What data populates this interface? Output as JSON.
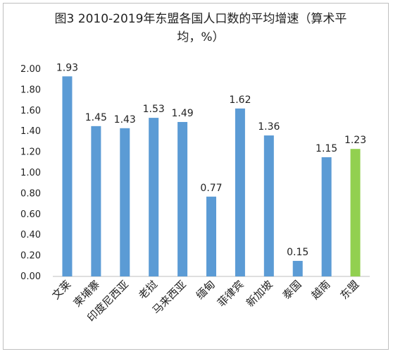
{
  "chart_data": {
    "type": "bar",
    "title": "图3 2010-2019年东盟各国人口数的平均增速（算术平均，%）",
    "categories": [
      "文莱",
      "柬埔寨",
      "印度尼西亚",
      "老挝",
      "马来西亚",
      "缅甸",
      "菲律宾",
      "新加坡",
      "泰国",
      "越南",
      "东盟"
    ],
    "values": [
      1.93,
      1.45,
      1.43,
      1.53,
      1.49,
      0.77,
      1.62,
      1.36,
      0.15,
      1.15,
      1.23
    ],
    "data_labels": [
      "1.93",
      "1.45",
      "1.43",
      "1.53",
      "1.49",
      "0.77",
      "1.62",
      "1.36",
      "0.15",
      "1.15",
      "1.23"
    ],
    "y_ticks": [
      "0.00",
      "0.20",
      "0.40",
      "0.60",
      "0.80",
      "1.00",
      "1.20",
      "1.40",
      "1.60",
      "1.80",
      "2.00"
    ],
    "ylim": [
      0,
      2.0
    ],
    "xlabel": "",
    "ylabel": "",
    "grid": false,
    "legend": "none",
    "colors": {
      "bar": "#5b9bd5",
      "highlight": "#92d050",
      "axis": "#bfbfbf"
    },
    "highlight_category": "东盟"
  }
}
